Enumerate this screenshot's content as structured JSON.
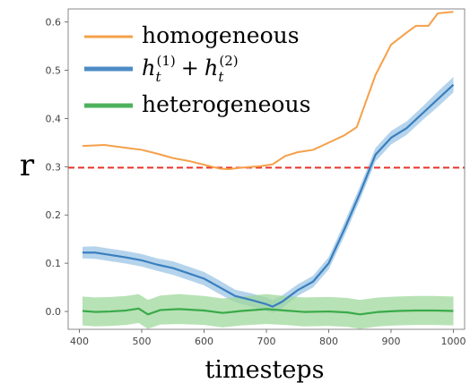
{
  "chart_data": {
    "type": "line",
    "title": "",
    "xlabel": "timesteps",
    "ylabel": "r",
    "xlim": [
      382,
      1018
    ],
    "ylim": [
      -0.037,
      0.627
    ],
    "xticks": [
      400,
      500,
      600,
      700,
      800,
      900,
      1000
    ],
    "yticks": [
      0.0,
      0.1,
      0.2,
      0.3,
      0.4,
      0.5,
      0.6
    ],
    "xtick_labels": [
      "400",
      "500",
      "600",
      "700",
      "800",
      "900",
      "1000"
    ],
    "ytick_labels": [
      "0.0",
      "0.1",
      "0.2",
      "0.3",
      "0.4",
      "0.5",
      "0.6"
    ],
    "grid": false,
    "legend_position": "top-left",
    "reference_line": {
      "y": 0.298,
      "color": "#e8322a",
      "style": "dashed"
    },
    "series": [
      {
        "name": "homogeneous",
        "color": "#f5a04a",
        "x": [
          405,
          440,
          470,
          500,
          525,
          550,
          575,
          600,
          625,
          640,
          660,
          690,
          710,
          730,
          750,
          775,
          800,
          825,
          845,
          875,
          900,
          925,
          940,
          960,
          975,
          1000
        ],
        "y": [
          0.343,
          0.345,
          0.34,
          0.335,
          0.327,
          0.318,
          0.312,
          0.304,
          0.296,
          0.295,
          0.298,
          0.301,
          0.305,
          0.322,
          0.33,
          0.335,
          0.35,
          0.365,
          0.382,
          0.49,
          0.553,
          0.578,
          0.592,
          0.592,
          0.618,
          0.621
        ]
      },
      {
        "name": "h_t^{(1)} + h_t^{(2)}",
        "color": "#3a7fbf",
        "band_color": "#9cc6e6",
        "x": [
          405,
          425,
          450,
          475,
          500,
          525,
          550,
          575,
          600,
          625,
          650,
          675,
          700,
          710,
          725,
          750,
          775,
          800,
          825,
          850,
          875,
          900,
          925,
          950,
          975,
          1000
        ],
        "y": [
          0.122,
          0.122,
          0.117,
          0.112,
          0.106,
          0.097,
          0.09,
          0.079,
          0.068,
          0.05,
          0.032,
          0.024,
          0.015,
          0.01,
          0.02,
          0.044,
          0.062,
          0.1,
          0.17,
          0.245,
          0.325,
          0.36,
          0.38,
          0.41,
          0.44,
          0.47
        ],
        "band": [
          0.012,
          0.013,
          0.013,
          0.013,
          0.013,
          0.013,
          0.014,
          0.014,
          0.014,
          0.014,
          0.013,
          0.014,
          0.014,
          0.013,
          0.013,
          0.012,
          0.012,
          0.013,
          0.014,
          0.014,
          0.014,
          0.014,
          0.014,
          0.014,
          0.016,
          0.016
        ]
      },
      {
        "name": "heterogeneous",
        "color": "#3aaa4a",
        "band_color": "#9fd89c",
        "x": [
          405,
          425,
          450,
          475,
          495,
          510,
          530,
          560,
          600,
          630,
          660,
          700,
          730,
          760,
          800,
          830,
          850,
          880,
          910,
          940,
          970,
          1000
        ],
        "y": [
          0.001,
          -0.001,
          0.0,
          0.002,
          0.006,
          -0.006,
          0.003,
          0.005,
          0.002,
          -0.003,
          0.001,
          0.005,
          0.002,
          -0.001,
          0.0,
          -0.002,
          -0.006,
          -0.001,
          0.001,
          0.002,
          0.002,
          0.001
        ],
        "band": [
          0.03,
          0.03,
          0.03,
          0.03,
          0.03,
          0.03,
          0.03,
          0.031,
          0.03,
          0.03,
          0.03,
          0.031,
          0.03,
          0.03,
          0.03,
          0.03,
          0.03,
          0.03,
          0.03,
          0.03,
          0.03,
          0.03
        ]
      }
    ]
  },
  "legend": {
    "items": [
      {
        "label": "homogeneous",
        "color": "#f5a04a"
      },
      {
        "label": "",
        "color": "#3a7fbf"
      },
      {
        "label": "heterogeneous",
        "color": "#3aaa4a"
      }
    ],
    "math_label": {
      "base": "h",
      "sub": "t",
      "sup1": "(1)",
      "sup2": "(2)",
      "plus": "+"
    }
  }
}
